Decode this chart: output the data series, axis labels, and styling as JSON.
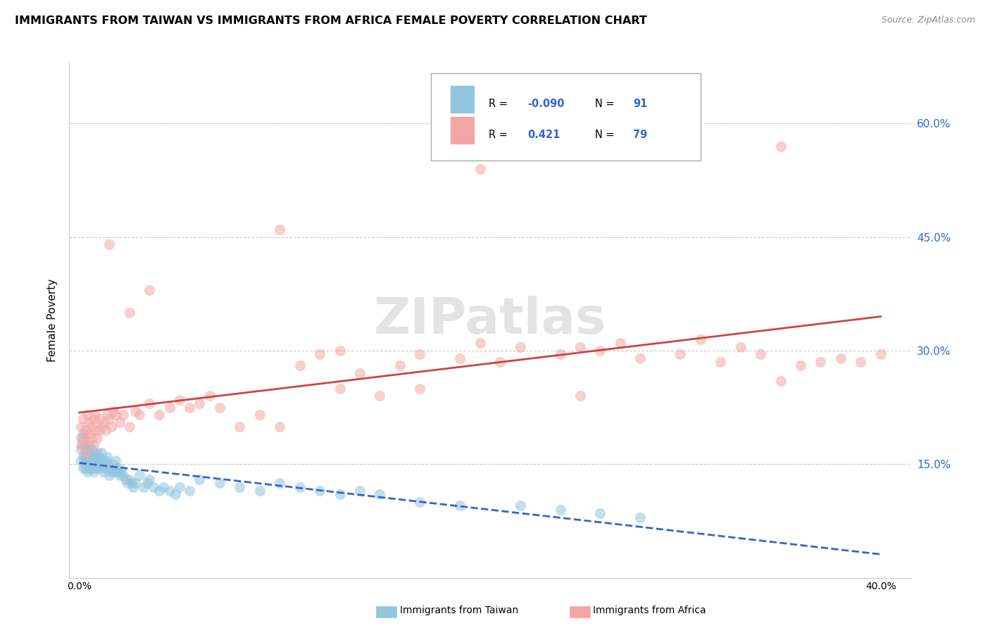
{
  "title": "IMMIGRANTS FROM TAIWAN VS IMMIGRANTS FROM AFRICA FEMALE POVERTY CORRELATION CHART",
  "source": "Source: ZipAtlas.com",
  "ylabel": "Female Poverty",
  "yticks_labels": [
    "60.0%",
    "45.0%",
    "30.0%",
    "15.0%"
  ],
  "ytick_vals": [
    0.6,
    0.45,
    0.3,
    0.15
  ],
  "xlim": [
    -0.005,
    0.415
  ],
  "ylim": [
    0.0,
    0.68
  ],
  "legend_taiwan_R": "-0.090",
  "legend_taiwan_N": "91",
  "legend_africa_R": "0.421",
  "legend_africa_N": "79",
  "taiwan_color": "#92C5DE",
  "africa_color": "#F4A6A6",
  "taiwan_line_color": "#3366CC",
  "africa_line_color": "#CC4444",
  "taiwan_scatter_alpha": 0.55,
  "africa_scatter_alpha": 0.55,
  "taiwan_x": [
    0.001,
    0.001,
    0.001,
    0.002,
    0.002,
    0.002,
    0.002,
    0.003,
    0.003,
    0.003,
    0.003,
    0.003,
    0.004,
    0.004,
    0.004,
    0.004,
    0.005,
    0.005,
    0.005,
    0.005,
    0.005,
    0.006,
    0.006,
    0.006,
    0.006,
    0.007,
    0.007,
    0.007,
    0.007,
    0.008,
    0.008,
    0.008,
    0.009,
    0.009,
    0.009,
    0.01,
    0.01,
    0.01,
    0.011,
    0.011,
    0.012,
    0.012,
    0.013,
    0.013,
    0.014,
    0.014,
    0.015,
    0.015,
    0.016,
    0.017,
    0.017,
    0.018,
    0.018,
    0.019,
    0.02,
    0.02,
    0.021,
    0.022,
    0.023,
    0.024,
    0.025,
    0.026,
    0.027,
    0.028,
    0.03,
    0.032,
    0.034,
    0.035,
    0.037,
    0.04,
    0.042,
    0.045,
    0.048,
    0.05,
    0.055,
    0.06,
    0.07,
    0.08,
    0.09,
    0.1,
    0.11,
    0.12,
    0.13,
    0.14,
    0.15,
    0.17,
    0.19,
    0.22,
    0.24,
    0.26,
    0.28
  ],
  "taiwan_y": [
    0.155,
    0.17,
    0.185,
    0.145,
    0.16,
    0.175,
    0.19,
    0.15,
    0.165,
    0.145,
    0.155,
    0.175,
    0.14,
    0.16,
    0.17,
    0.15,
    0.155,
    0.145,
    0.165,
    0.175,
    0.155,
    0.16,
    0.145,
    0.155,
    0.17,
    0.14,
    0.155,
    0.165,
    0.15,
    0.145,
    0.16,
    0.155,
    0.165,
    0.145,
    0.155,
    0.15,
    0.16,
    0.145,
    0.155,
    0.165,
    0.15,
    0.14,
    0.155,
    0.145,
    0.15,
    0.16,
    0.145,
    0.135,
    0.14,
    0.15,
    0.14,
    0.145,
    0.155,
    0.14,
    0.135,
    0.145,
    0.14,
    0.135,
    0.13,
    0.125,
    0.13,
    0.125,
    0.12,
    0.125,
    0.135,
    0.12,
    0.125,
    0.13,
    0.12,
    0.115,
    0.12,
    0.115,
    0.11,
    0.12,
    0.115,
    0.13,
    0.125,
    0.12,
    0.115,
    0.125,
    0.12,
    0.115,
    0.11,
    0.115,
    0.11,
    0.1,
    0.095,
    0.095,
    0.09,
    0.085,
    0.08
  ],
  "africa_x": [
    0.001,
    0.001,
    0.002,
    0.002,
    0.003,
    0.003,
    0.004,
    0.004,
    0.005,
    0.005,
    0.006,
    0.006,
    0.007,
    0.007,
    0.008,
    0.008,
    0.009,
    0.01,
    0.01,
    0.011,
    0.012,
    0.013,
    0.014,
    0.015,
    0.016,
    0.017,
    0.018,
    0.02,
    0.022,
    0.025,
    0.028,
    0.03,
    0.035,
    0.04,
    0.045,
    0.05,
    0.055,
    0.06,
    0.065,
    0.07,
    0.08,
    0.09,
    0.1,
    0.11,
    0.12,
    0.13,
    0.14,
    0.16,
    0.17,
    0.19,
    0.2,
    0.21,
    0.22,
    0.24,
    0.25,
    0.26,
    0.27,
    0.28,
    0.3,
    0.31,
    0.32,
    0.33,
    0.34,
    0.35,
    0.36,
    0.37,
    0.38,
    0.39,
    0.4,
    0.015,
    0.025,
    0.035,
    0.1,
    0.15,
    0.2,
    0.25,
    0.35,
    0.13,
    0.17
  ],
  "africa_y": [
    0.175,
    0.2,
    0.185,
    0.21,
    0.165,
    0.195,
    0.18,
    0.215,
    0.19,
    0.205,
    0.185,
    0.2,
    0.175,
    0.21,
    0.195,
    0.215,
    0.185,
    0.195,
    0.21,
    0.2,
    0.205,
    0.195,
    0.215,
    0.21,
    0.2,
    0.22,
    0.215,
    0.205,
    0.215,
    0.2,
    0.22,
    0.215,
    0.23,
    0.215,
    0.225,
    0.235,
    0.225,
    0.23,
    0.24,
    0.225,
    0.2,
    0.215,
    0.2,
    0.28,
    0.295,
    0.25,
    0.27,
    0.28,
    0.295,
    0.29,
    0.31,
    0.285,
    0.305,
    0.295,
    0.305,
    0.3,
    0.31,
    0.29,
    0.295,
    0.315,
    0.285,
    0.305,
    0.295,
    0.26,
    0.28,
    0.285,
    0.29,
    0.285,
    0.295,
    0.44,
    0.35,
    0.38,
    0.46,
    0.24,
    0.54,
    0.24,
    0.57,
    0.3,
    0.25
  ]
}
